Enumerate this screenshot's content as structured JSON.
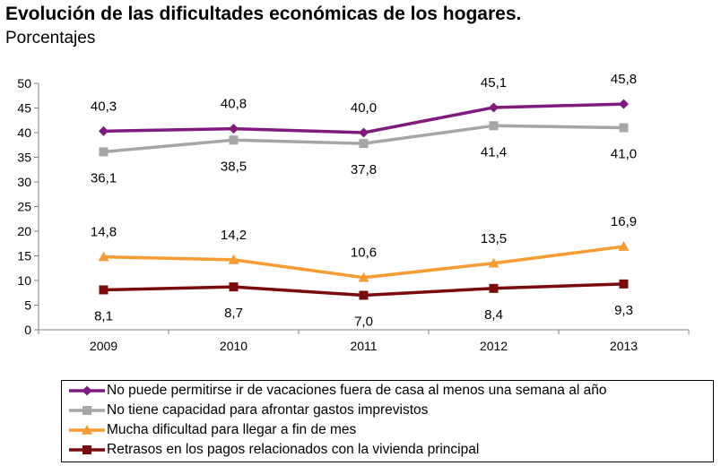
{
  "header": {
    "title": "Evolución de las dificultades económicas de los hogares.",
    "subtitle": "Porcentajes"
  },
  "chart_data": {
    "type": "line",
    "title": "Evolución de las dificultades económicas de los hogares.",
    "subtitle": "Porcentajes",
    "xlabel": "",
    "ylabel": "",
    "categories": [
      "2009",
      "2010",
      "2011",
      "2012",
      "2013"
    ],
    "ylim": [
      0,
      50
    ],
    "yticks": [
      0,
      5,
      10,
      15,
      20,
      25,
      30,
      35,
      40,
      45,
      50
    ],
    "grid": false,
    "legend_position": "bottom",
    "series": [
      {
        "name": "No puede permitirse ir de vacaciones fuera de casa al menos una semana al año",
        "values": [
          40.3,
          40.8,
          40.0,
          45.1,
          45.8
        ],
        "labels": [
          "40,3",
          "40,8",
          "40,0",
          "45,1",
          "45,8"
        ],
        "label_pos": [
          "above",
          "above",
          "above",
          "above",
          "above"
        ],
        "color": "#7f1a7f",
        "marker": "diamond"
      },
      {
        "name": "No tiene capacidad para afrontar gastos imprevistos",
        "values": [
          36.1,
          38.5,
          37.8,
          41.4,
          41.0
        ],
        "labels": [
          "36,1",
          "38,5",
          "37,8",
          "41,4",
          "41,0"
        ],
        "label_pos": [
          "below",
          "below",
          "below",
          "below",
          "below"
        ],
        "color": "#a6a6a6",
        "marker": "square"
      },
      {
        "name": "Mucha dificultad para llegar a fin de mes",
        "values": [
          14.8,
          14.2,
          10.6,
          13.5,
          16.9
        ],
        "labels": [
          "14,8",
          "14,2",
          "10,6",
          "13,5",
          "16,9"
        ],
        "label_pos": [
          "above",
          "above",
          "above",
          "above",
          "above"
        ],
        "color": "#f79b33",
        "marker": "triangle"
      },
      {
        "name": "Retrasos en los pagos relacionados con la vivienda principal",
        "values": [
          8.1,
          8.7,
          7.0,
          8.4,
          9.3
        ],
        "labels": [
          "8,1",
          "8,7",
          "7,0",
          "8,4",
          "9,3"
        ],
        "label_pos": [
          "below",
          "below",
          "below",
          "below",
          "below"
        ],
        "color": "#7b0b0b",
        "marker": "square"
      }
    ]
  }
}
